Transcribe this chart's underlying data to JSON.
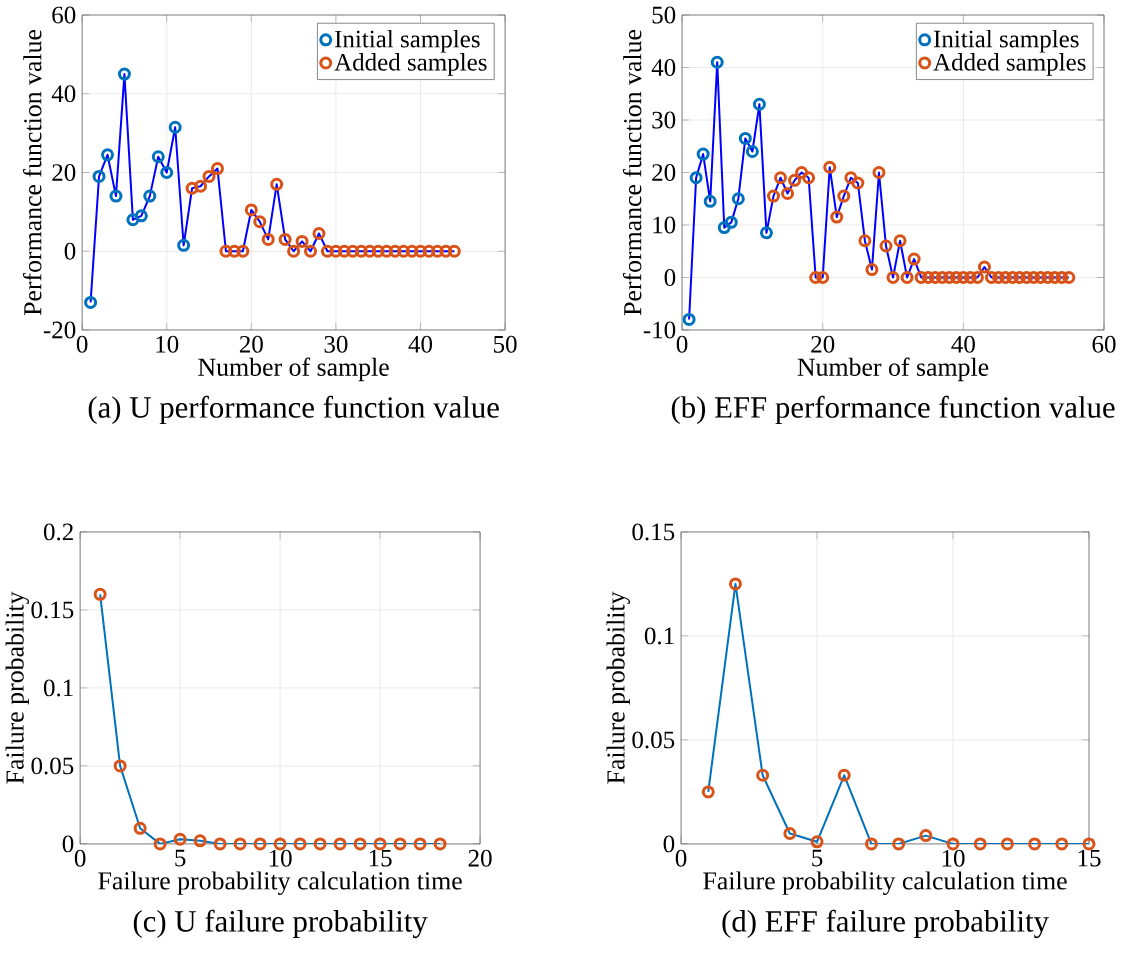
{
  "chart_data": [
    {
      "type": "scatter",
      "title": "(a) U performance function value",
      "xlabel": "Number of sample",
      "ylabel": "Performance function value",
      "xlim": [
        0,
        50
      ],
      "xticks": [
        0,
        10,
        20,
        30,
        40,
        50
      ],
      "ylim": [
        -20,
        60
      ],
      "yticks": [
        -20,
        0,
        20,
        40,
        60
      ],
      "grid": true,
      "legend": "top right",
      "series": [
        {
          "type": "line",
          "color": "#0000ff",
          "marker": "none",
          "x": [
            1,
            2,
            3,
            4,
            5,
            6,
            7,
            8,
            9,
            10,
            11,
            12,
            13,
            14,
            15,
            16,
            17,
            18,
            19,
            20,
            21,
            22,
            23,
            24,
            25,
            26,
            27,
            28,
            29,
            30,
            31,
            32,
            33,
            34,
            35,
            36,
            37,
            38,
            39,
            40,
            41,
            42,
            43,
            44
          ],
          "values": [
            -13,
            19,
            24.5,
            14,
            45,
            8,
            9,
            14,
            24,
            20,
            31.5,
            1.5,
            16,
            16.5,
            19,
            21,
            0,
            0,
            0,
            10.5,
            7.5,
            3,
            17,
            3,
            0,
            2.5,
            0,
            4.5,
            0,
            0,
            0,
            0,
            0,
            0,
            0,
            0,
            0,
            0,
            0,
            0,
            0,
            0,
            0,
            0
          ]
        },
        {
          "name": "Initial samples",
          "color": "#0072bd",
          "marker": "circle",
          "x": [
            1,
            2,
            3,
            4,
            5,
            6,
            7,
            8,
            9,
            10,
            11,
            12
          ],
          "values": [
            -13,
            19,
            24.5,
            14,
            45,
            8,
            9,
            14,
            24,
            20,
            31.5,
            1.5
          ]
        },
        {
          "name": "Added samples",
          "color": "#d95319",
          "marker": "circle",
          "x": [
            13,
            14,
            15,
            16,
            17,
            18,
            19,
            20,
            21,
            22,
            23,
            24,
            25,
            26,
            27,
            28,
            29,
            30,
            31,
            32,
            33,
            34,
            35,
            36,
            37,
            38,
            39,
            40,
            41,
            42,
            43,
            44
          ],
          "values": [
            16,
            16.5,
            19,
            21,
            0,
            0,
            0,
            10.5,
            7.5,
            3,
            17,
            3,
            0,
            2.5,
            0,
            4.5,
            0,
            0,
            0,
            0,
            0,
            0,
            0,
            0,
            0,
            0,
            0,
            0,
            0,
            0,
            0,
            0
          ]
        }
      ]
    },
    {
      "type": "scatter",
      "title": "(b) EFF performance function value",
      "xlabel": "Number of sample",
      "ylabel": "Performance function value",
      "xlim": [
        0,
        60
      ],
      "xticks": [
        0,
        20,
        40,
        60
      ],
      "ylim": [
        -10,
        50
      ],
      "yticks": [
        -10,
        0,
        10,
        20,
        30,
        40,
        50
      ],
      "grid": true,
      "legend": "top right",
      "series": [
        {
          "type": "line",
          "color": "#0000ff",
          "marker": "none",
          "x": [
            1,
            2,
            3,
            4,
            5,
            6,
            7,
            8,
            9,
            10,
            11,
            12,
            13,
            14,
            15,
            16,
            17,
            18,
            19,
            20,
            21,
            22,
            23,
            24,
            25,
            26,
            27,
            28,
            29,
            30,
            31,
            32,
            33,
            34,
            35,
            36,
            37,
            38,
            39,
            40,
            41,
            42,
            43,
            44,
            45,
            46,
            47,
            48,
            49,
            50,
            51,
            52,
            53,
            54,
            55
          ],
          "values": [
            -8,
            19,
            23.5,
            14.5,
            41,
            9.5,
            10.5,
            15,
            26.5,
            24,
            33,
            8.5,
            15.5,
            19,
            16,
            18.5,
            20,
            19,
            0,
            0,
            21,
            11.5,
            15.5,
            19,
            18,
            7,
            1.5,
            20,
            6,
            0,
            7,
            0,
            3.5,
            0,
            0,
            0,
            0,
            0,
            0,
            0,
            0,
            0,
            2,
            0,
            0,
            0,
            0,
            0,
            0,
            0,
            0,
            0,
            0,
            0,
            0
          ]
        },
        {
          "name": "Initial samples",
          "color": "#0072bd",
          "marker": "circle",
          "x": [
            1,
            2,
            3,
            4,
            5,
            6,
            7,
            8,
            9,
            10,
            11,
            12
          ],
          "values": [
            -8,
            19,
            23.5,
            14.5,
            41,
            9.5,
            10.5,
            15,
            26.5,
            24,
            33,
            8.5
          ]
        },
        {
          "name": "Added samples",
          "color": "#d95319",
          "marker": "circle",
          "x": [
            13,
            14,
            15,
            16,
            17,
            18,
            19,
            20,
            21,
            22,
            23,
            24,
            25,
            26,
            27,
            28,
            29,
            30,
            31,
            32,
            33,
            34,
            35,
            36,
            37,
            38,
            39,
            40,
            41,
            42,
            43,
            44,
            45,
            46,
            47,
            48,
            49,
            50,
            51,
            52,
            53,
            54,
            55
          ],
          "values": [
            15.5,
            19,
            16,
            18.5,
            20,
            19,
            0,
            0,
            21,
            11.5,
            15.5,
            19,
            18,
            7,
            1.5,
            20,
            6,
            0,
            7,
            0,
            3.5,
            0,
            0,
            0,
            0,
            0,
            0,
            0,
            0,
            0,
            2,
            0,
            0,
            0,
            0,
            0,
            0,
            0,
            0,
            0,
            0,
            0,
            0
          ]
        }
      ]
    },
    {
      "type": "line",
      "title": "(c) U failure probability",
      "xlabel": "Failure probability calculation time",
      "ylabel": "Failure probability",
      "xlim": [
        0,
        20
      ],
      "xticks": [
        0,
        5,
        10,
        15,
        20
      ],
      "ylim": [
        0,
        0.2
      ],
      "yticks": [
        0,
        0.05,
        0.1,
        0.15,
        0.2
      ],
      "grid": true,
      "series": [
        {
          "color": "#0072bd",
          "marker": "none",
          "x": [
            1,
            2,
            3,
            4,
            5,
            6,
            7,
            8,
            9,
            10,
            11,
            12,
            13,
            14,
            15,
            16,
            17,
            18
          ],
          "values": [
            0.16,
            0.05,
            0.01,
            0,
            0.003,
            0.002,
            0,
            0,
            0,
            0,
            0,
            0,
            0,
            0,
            0,
            0,
            0,
            0
          ]
        },
        {
          "type": "scatter",
          "color": "#d95319",
          "marker": "circle",
          "x": [
            1,
            2,
            3,
            4,
            5,
            6,
            7,
            8,
            9,
            10,
            11,
            12,
            13,
            14,
            15,
            16,
            17,
            18
          ],
          "values": [
            0.16,
            0.05,
            0.01,
            0,
            0.003,
            0.002,
            0,
            0,
            0,
            0,
            0,
            0,
            0,
            0,
            0,
            0,
            0,
            0
          ]
        }
      ]
    },
    {
      "type": "line",
      "title": "(d) EFF failure probability",
      "xlabel": "Failure probability calculation time",
      "ylabel": "Failure probability",
      "xlim": [
        0,
        15
      ],
      "xticks": [
        0,
        5,
        10,
        15
      ],
      "ylim": [
        0,
        0.15
      ],
      "yticks": [
        0,
        0.05,
        0.1,
        0.15
      ],
      "grid": true,
      "series": [
        {
          "color": "#0072bd",
          "marker": "none",
          "x": [
            1,
            2,
            3,
            4,
            5,
            6,
            7,
            8,
            9,
            10,
            11,
            12,
            13,
            14,
            15
          ],
          "values": [
            0.025,
            0.125,
            0.033,
            0.005,
            0.001,
            0.033,
            0,
            0,
            0.004,
            0,
            0,
            0,
            0,
            0,
            0
          ]
        },
        {
          "type": "scatter",
          "color": "#d95319",
          "marker": "circle",
          "x": [
            1,
            2,
            3,
            4,
            5,
            6,
            7,
            8,
            9,
            10,
            11,
            12,
            13,
            14,
            15
          ],
          "values": [
            0.025,
            0.125,
            0.033,
            0.005,
            0.001,
            0.033,
            0,
            0,
            0.004,
            0,
            0,
            0,
            0,
            0,
            0
          ]
        }
      ]
    }
  ]
}
